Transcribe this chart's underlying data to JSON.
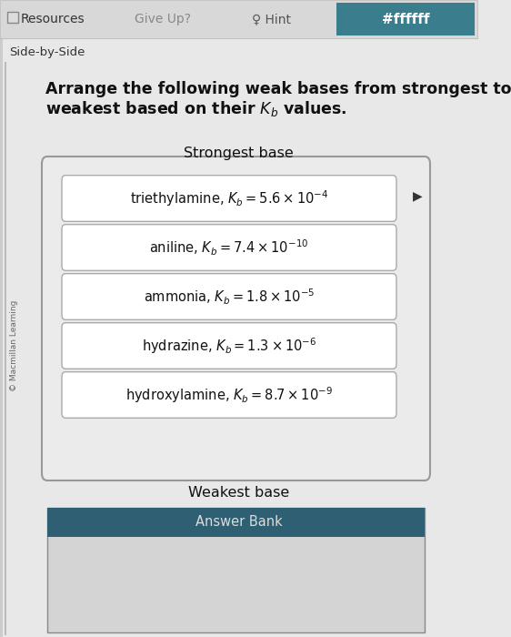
{
  "bg_color": "#e8e8e8",
  "nav_bg": "#d8d8d8",
  "nav_border": "#bbbbbb",
  "check_answer_bg": "#3a7d8c",
  "check_answer_text": "#ffffff",
  "section_label": "Side-by-Side",
  "rotated_label": "© Macmillan Learning",
  "question_line1": "Arrange the following weak bases from strongest to",
  "question_line2": "weakest based on their $K_b$ values.",
  "strongest_label": "Strongest base",
  "weakest_label": "Weakest base",
  "answer_bank_label": "Answer Bank",
  "item_labels_latex": [
    "triethylamine, $K_b = 5.6 \\times 10^{-4}$",
    "aniline, $K_b = 7.4 \\times 10^{-10}$",
    "ammonia, $K_b = 1.8 \\times 10^{-5}$",
    "hydrazine, $K_b = 1.3 \\times 10^{-6}$",
    "hydroxylamine, $K_b = 8.7 \\times 10^{-9}$"
  ],
  "box_bg": "#ffffff",
  "box_border": "#aaaaaa",
  "outer_box_bg": "#ebebeb",
  "outer_box_border": "#999999",
  "answer_bank_bg": "#2f5f72",
  "answer_bank_lower_bg": "#d4d4d4",
  "answer_bank_border": "#888888",
  "text_color": "#111111",
  "nav_resources_color": "#333333",
  "nav_hint_color": "#555555",
  "nav_giveup_color": "#888888",
  "side_by_side_color": "#333333",
  "title_size": 12.5,
  "item_fontsize": 10.5,
  "nav_fontsize": 10,
  "label_fontsize": 11.5
}
